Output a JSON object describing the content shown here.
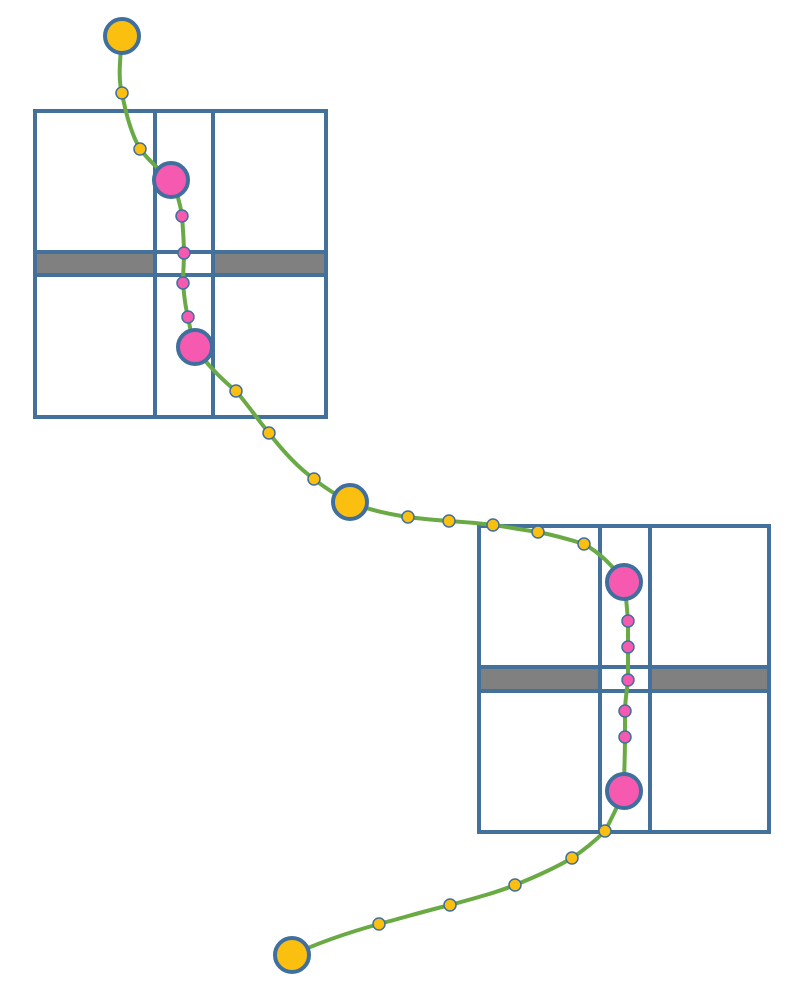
{
  "colors": {
    "background": "#ffffff",
    "grid_stroke": "#44709c",
    "divider_band": "#808080",
    "path": "#6aaa45",
    "waypoint_yellow": "#fbbf10",
    "waypoint_pink": "#f55ab0",
    "node_outline": "#3f6f9e"
  },
  "diagram": {
    "grid_blocks": [
      {
        "name": "upper-left-grid-block",
        "columns": 3,
        "rows": 2,
        "has_center_divider_band": true
      },
      {
        "name": "lower-right-grid-block",
        "columns": 3,
        "rows": 2,
        "has_center_divider_band": true
      }
    ],
    "route": {
      "large_yellow_nodes": 3,
      "large_pink_nodes": 4,
      "small_yellow_markers": 15,
      "small_pink_markers": 9
    }
  }
}
